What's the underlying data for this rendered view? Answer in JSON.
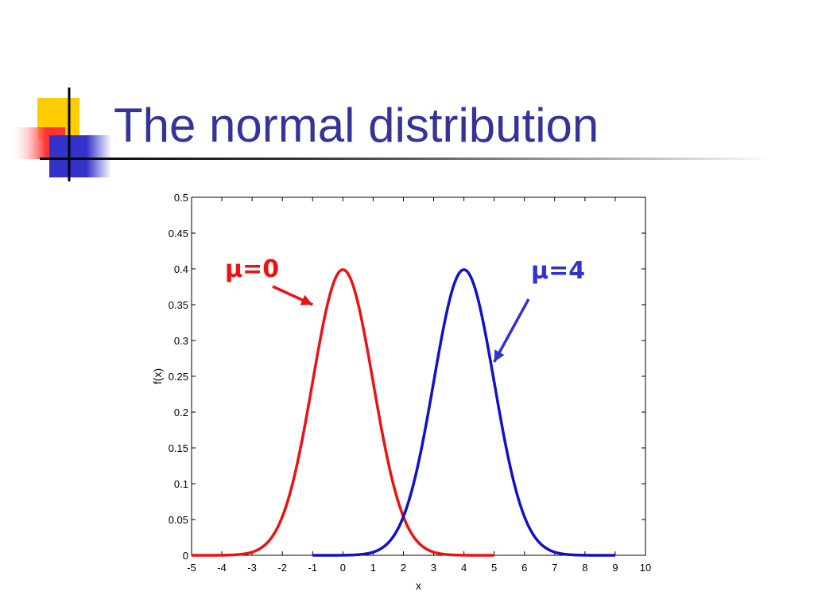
{
  "slide": {
    "title": "The normal distribution",
    "title_color": "#333399",
    "decoration_colors": {
      "yellow": "#ffcc00",
      "red": "#ff3333",
      "blue": "#3333cc",
      "line": "#000000"
    }
  },
  "chart_data": {
    "type": "line",
    "title": "",
    "xlabel": "x",
    "ylabel": "f(x)",
    "xlim": [
      -5,
      10
    ],
    "ylim": [
      0,
      0.5
    ],
    "xticks": [
      -5,
      -4,
      -3,
      -2,
      -1,
      0,
      1,
      2,
      3,
      4,
      5,
      6,
      7,
      8,
      9,
      10
    ],
    "yticks": [
      0,
      0.05,
      0.1,
      0.15,
      0.2,
      0.25,
      0.3,
      0.35,
      0.4,
      0.45,
      0.5
    ],
    "grid": false,
    "series": [
      {
        "mean": 0,
        "sd": 1,
        "x_range": [
          -5,
          5
        ],
        "color": "#ee1111"
      },
      {
        "mean": 4,
        "sd": 1,
        "x_range": [
          -1,
          9
        ],
        "color": "#1111cc"
      }
    ],
    "annotations": [
      {
        "text": "μ=0",
        "color": "#ee1111",
        "points_to": {
          "x": -1,
          "y": 0.35
        }
      },
      {
        "text": "μ=4",
        "color": "#3333cc",
        "points_to": {
          "x": 5,
          "y": 0.27
        }
      }
    ]
  }
}
